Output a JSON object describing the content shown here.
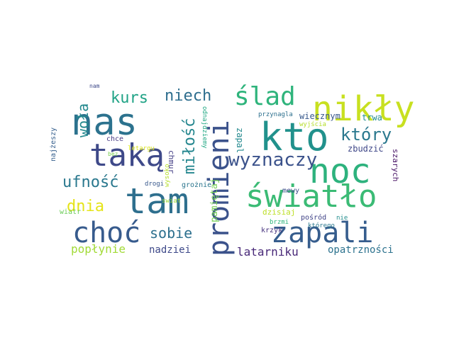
{
  "wordcloud": {
    "words": [
      {
        "text": "nas",
        "color": "#2c728e"
      },
      {
        "text": "kto",
        "color": "#21918c"
      },
      {
        "text": "nikły",
        "color": "#c8e020"
      },
      {
        "text": "ślad",
        "color": "#2fb47c"
      },
      {
        "text": "noc",
        "color": "#2db27d"
      },
      {
        "text": "promieni",
        "color": "#3b528b"
      },
      {
        "text": "światło",
        "color": "#3bbb75"
      },
      {
        "text": "tam",
        "color": "#2e6f8e"
      },
      {
        "text": "taką",
        "color": "#3e4989"
      },
      {
        "text": "choć",
        "color": "#375b8d"
      },
      {
        "text": "zapali",
        "color": "#365d8d"
      },
      {
        "text": "wyznaczy",
        "color": "#3b528b"
      },
      {
        "text": "który",
        "color": "#2a788e"
      },
      {
        "text": "miłość",
        "color": "#24868e"
      },
      {
        "text": "niech",
        "color": "#2e6e8e"
      },
      {
        "text": "kurs",
        "color": "#20a386"
      },
      {
        "text": "woła",
        "color": "#23898e"
      },
      {
        "text": "ufność",
        "color": "#2a788e"
      },
      {
        "text": "sobie",
        "color": "#2d708e"
      },
      {
        "text": "dnia",
        "color": "#e5e419"
      },
      {
        "text": "latarniku",
        "color": "#482878"
      },
      {
        "text": "popłynie",
        "color": "#a2da37"
      },
      {
        "text": "nadziei",
        "color": "#3e4989"
      },
      {
        "text": "opatrzności",
        "color": "#2c728e"
      },
      {
        "text": "pamiętaj",
        "color": "#75d054"
      },
      {
        "text": "zapal",
        "color": "#23898e"
      },
      {
        "text": "wiecznym",
        "color": "#38588c"
      },
      {
        "text": "trwa",
        "color": "#228d8d"
      },
      {
        "text": "zbudzić",
        "color": "#3f4788"
      },
      {
        "text": "szarych",
        "color": "#471365"
      },
      {
        "text": "chmur",
        "color": "#433e85"
      },
      {
        "text": "najżeszy",
        "color": "#355f8d"
      },
      {
        "text": "odnajdziemy",
        "color": "#22a884"
      },
      {
        "text": "grożnie",
        "color": "#2b758e"
      },
      {
        "text": "mewy",
        "color": "#3d4e8a"
      },
      {
        "text": "dzisiaj",
        "color": "#bddf26"
      },
      {
        "text": "pośród",
        "color": "#404387"
      },
      {
        "text": "krzyk",
        "color": "#46327e"
      },
      {
        "text": "brzmi",
        "color": "#2fb47c"
      },
      {
        "text": "którego",
        "color": "#2a788e"
      },
      {
        "text": "nie",
        "color": "#228d8d"
      },
      {
        "text": "wiatr",
        "color": "#6ccd5a"
      },
      {
        "text": "swiat",
        "color": "#9dd93b"
      },
      {
        "text": "drogi",
        "color": "#38588c"
      },
      {
        "text": "wysoko",
        "color": "#b5de2b"
      },
      {
        "text": "chce",
        "color": "#453882"
      },
      {
        "text": "letargu",
        "color": "#d8e219"
      },
      {
        "text": "bez",
        "color": "#7ad151"
      },
      {
        "text": "przynagla",
        "color": "#2d708e"
      },
      {
        "text": "wyjścia",
        "color": "#b5de2b"
      },
      {
        "text": "nam",
        "color": "#3e4989"
      }
    ]
  }
}
